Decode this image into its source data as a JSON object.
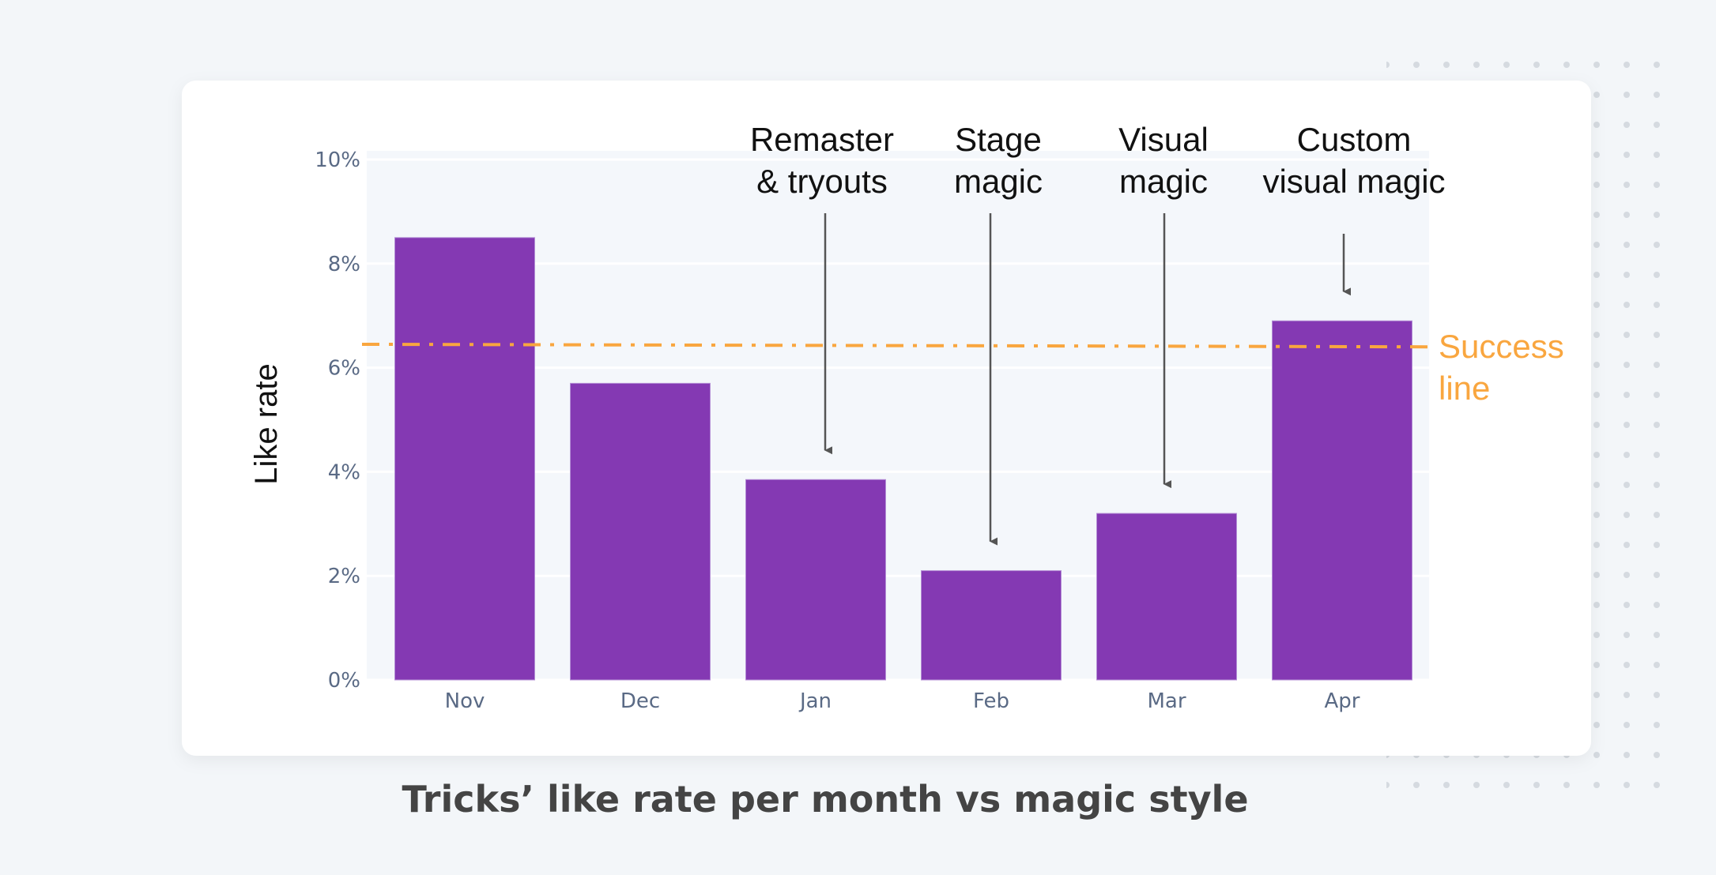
{
  "chart_data": {
    "type": "bar",
    "title": "Tricks’ like rate per month vs magic style",
    "xlabel": "",
    "ylabel": "Like rate",
    "categories": [
      "Nov",
      "Dec",
      "Jan",
      "Feb",
      "Mar",
      "Apr"
    ],
    "values": [
      8.5,
      5.7,
      3.85,
      2.1,
      3.2,
      6.9
    ],
    "value_unit": "%",
    "ylim": [
      0,
      10
    ],
    "yticks": [
      0,
      2,
      4,
      6,
      8,
      10
    ],
    "ytick_labels": [
      "0%",
      "2%",
      "4%",
      "6%",
      "8%",
      "10%"
    ],
    "grid": true,
    "bar_color": "#8439b3",
    "reference_line": {
      "label": [
        "Success",
        "line"
      ],
      "y_start": 6.45,
      "y_end": 6.4,
      "style": "dash-dot",
      "color": "#f9a63f"
    },
    "annotations": [
      {
        "lines": [
          "Remaster",
          "& tryouts"
        ],
        "category": "Jan"
      },
      {
        "lines": [
          "Stage",
          "magic"
        ],
        "category": "Feb"
      },
      {
        "lines": [
          "Visual",
          "magic"
        ],
        "category": "Mar"
      },
      {
        "lines": [
          "Custom",
          "visual magic"
        ],
        "category": "Apr"
      }
    ],
    "annotation_arrow_color": "#555555"
  }
}
